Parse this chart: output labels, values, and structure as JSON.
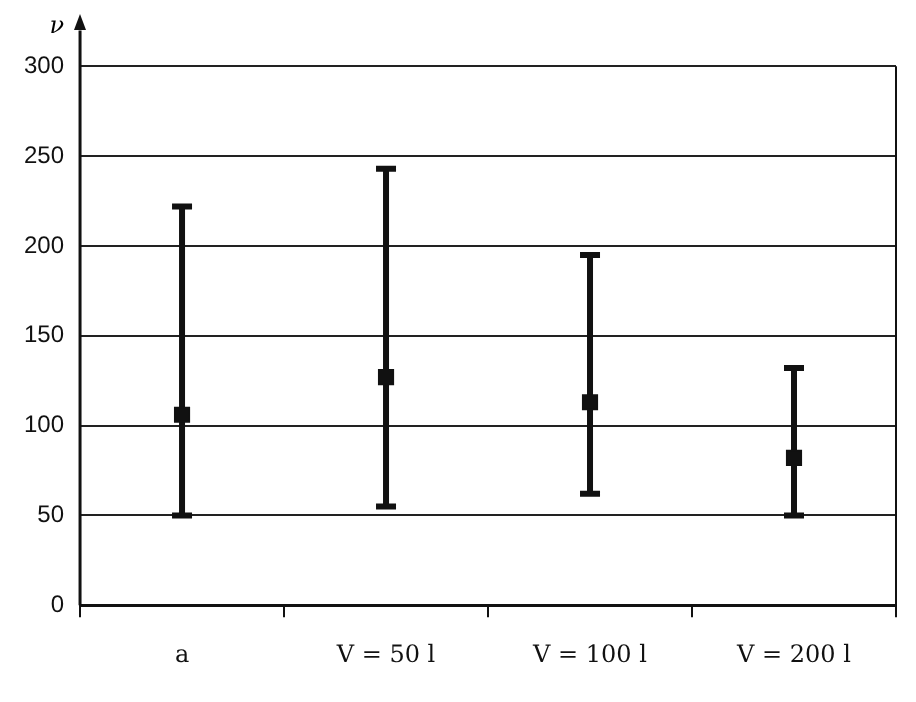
{
  "chart_data": {
    "type": "scatter",
    "ylabel": "ν",
    "categories": [
      "a",
      "V = 50 l",
      "V = 100 l",
      "V = 200 l"
    ],
    "series": [
      {
        "color": "#111111",
        "values": [
          106,
          127,
          113,
          82
        ],
        "errors": [
          [
            50,
            222
          ],
          [
            55,
            243
          ],
          [
            62,
            195
          ],
          [
            50,
            132
          ]
        ]
      }
    ],
    "ylim": [
      0,
      320
    ],
    "yticks": [
      0,
      50,
      100,
      150,
      200,
      250,
      300
    ],
    "grid": "y",
    "legend": false,
    "marker": "square"
  }
}
